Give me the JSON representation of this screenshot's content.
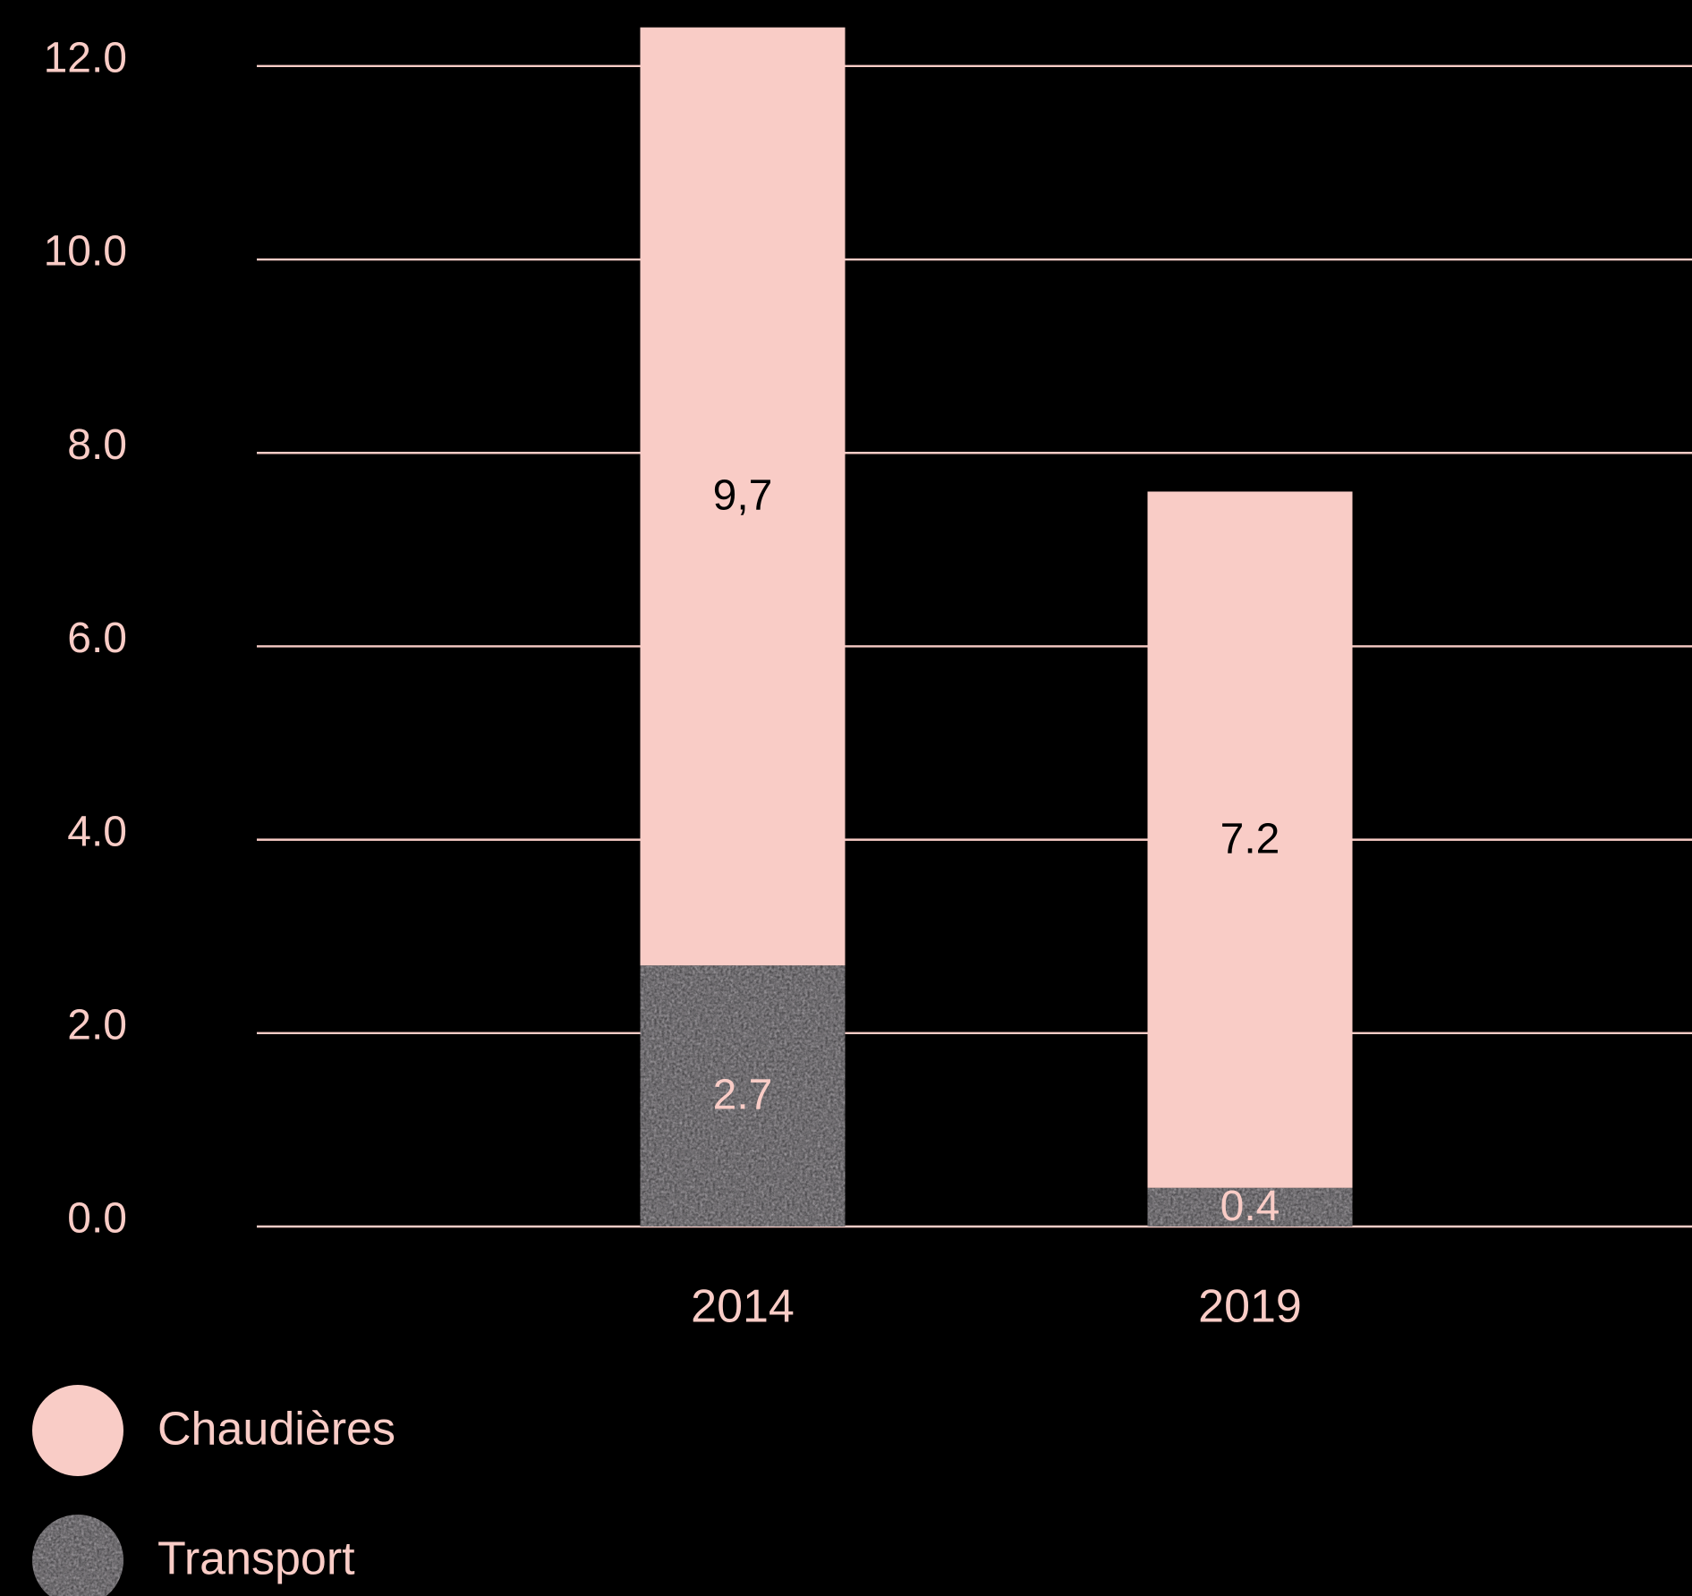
{
  "chart_data": {
    "type": "stacked-bar",
    "categories": [
      "2014",
      "2019"
    ],
    "series": [
      {
        "name": "Transport",
        "color": "#3b3a3d",
        "values": [
          2.7,
          0.4
        ]
      },
      {
        "name": "Chaudières",
        "color": "#f9ccc6",
        "values": [
          9.7,
          7.2
        ],
        "value_labels": [
          "9,7",
          "7.2"
        ]
      }
    ],
    "ylim": [
      0,
      12.6
    ],
    "yticks": [
      {
        "value": 0,
        "label": "0.0"
      },
      {
        "value": 2,
        "label": "2.0"
      },
      {
        "value": 4,
        "label": "4.0"
      },
      {
        "value": 6,
        "label": "6.0"
      },
      {
        "value": 8,
        "label": "8.0"
      },
      {
        "value": 10,
        "label": "10.0"
      },
      {
        "value": 12,
        "label": "12.0"
      }
    ],
    "grid": true
  }
}
